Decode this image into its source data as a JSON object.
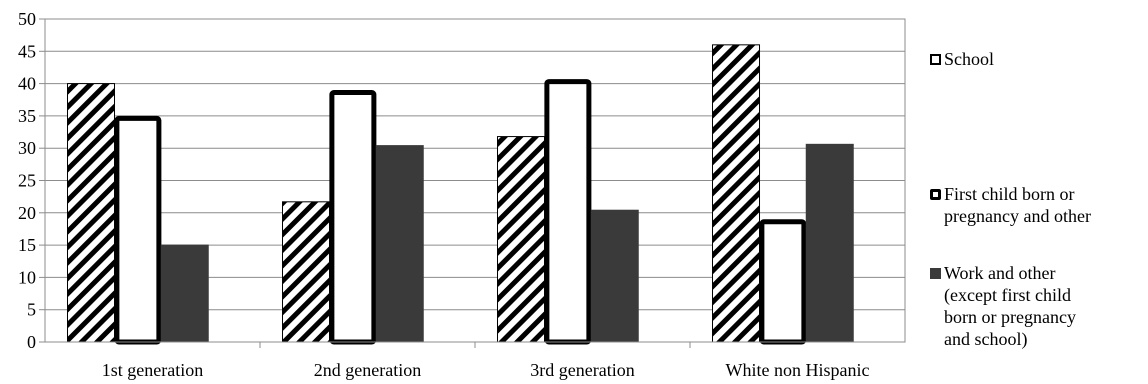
{
  "chart_data": {
    "type": "bar",
    "categories": [
      "1st generation",
      "2nd generation",
      "3rd generation",
      "White non Hispanic"
    ],
    "series": [
      {
        "name": "School",
        "values": [
          40,
          21.7,
          31.8,
          46
        ],
        "style": "diagonal-hatch",
        "color": "#000000"
      },
      {
        "name": "First child born or pregnancy and other",
        "values": [
          35,
          39,
          40.7,
          19
        ],
        "style": "white-thick-outline",
        "color": "#000000"
      },
      {
        "name": "Work and other (except first child born or pregnancy and school)",
        "values": [
          15,
          30.4,
          20.4,
          30.6
        ],
        "style": "solid",
        "color": "#3a3a3a"
      }
    ],
    "legend_lines": [
      [
        "School"
      ],
      [
        "First child born or",
        "pregnancy and other"
      ],
      [
        "Work and other",
        "(except first child",
        "born or pregnancy",
        "and school)"
      ]
    ],
    "yticks": [
      "0",
      "5",
      "10",
      "15",
      "20",
      "25",
      "30",
      "35",
      "40",
      "45",
      "50"
    ],
    "ylim": [
      0,
      50
    ],
    "title": "",
    "xlabel": "",
    "ylabel": "",
    "grid": true,
    "legend_position": "right"
  }
}
